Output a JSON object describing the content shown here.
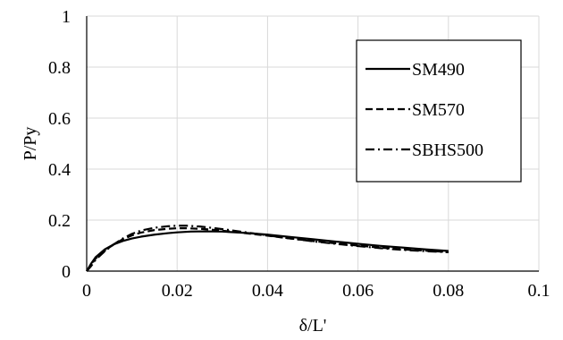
{
  "chart_data": {
    "type": "line",
    "title": "",
    "xlabel": "δ/L'",
    "ylabel": "P/Py",
    "xlim": [
      0,
      0.1
    ],
    "ylim": [
      0,
      1
    ],
    "xticks": [
      0,
      0.02,
      0.04,
      0.06,
      0.08,
      0.1
    ],
    "yticks": [
      0,
      0.2,
      0.4,
      0.6,
      0.8,
      1
    ],
    "xtick_labels": [
      "0",
      "0.02",
      "0.04",
      "0.06",
      "0.08",
      "0.1"
    ],
    "ytick_labels": [
      "0",
      "0.2",
      "0.4",
      "0.6",
      "0.8",
      "1"
    ],
    "grid": true,
    "legend_position": "right",
    "series": [
      {
        "name": "SM490",
        "style": "solid",
        "x": [
          0,
          0.001,
          0.002,
          0.004,
          0.006,
          0.008,
          0.01,
          0.012,
          0.015,
          0.018,
          0.02,
          0.023,
          0.026,
          0.03,
          0.035,
          0.04,
          0.045,
          0.05,
          0.055,
          0.06,
          0.065,
          0.07,
          0.075,
          0.08
        ],
        "y": [
          0,
          0.03,
          0.055,
          0.085,
          0.105,
          0.118,
          0.128,
          0.135,
          0.143,
          0.149,
          0.152,
          0.155,
          0.156,
          0.155,
          0.15,
          0.143,
          0.134,
          0.125,
          0.116,
          0.107,
          0.099,
          0.092,
          0.085,
          0.079
        ]
      },
      {
        "name": "SM570",
        "style": "dashed",
        "x": [
          0,
          0.001,
          0.002,
          0.004,
          0.006,
          0.008,
          0.01,
          0.012,
          0.015,
          0.018,
          0.02,
          0.022,
          0.025,
          0.028,
          0.032,
          0.036,
          0.04,
          0.045,
          0.05,
          0.055,
          0.06,
          0.065,
          0.07,
          0.075,
          0.08
        ],
        "y": [
          0,
          0.025,
          0.05,
          0.08,
          0.105,
          0.125,
          0.14,
          0.151,
          0.161,
          0.166,
          0.168,
          0.168,
          0.166,
          0.162,
          0.155,
          0.147,
          0.139,
          0.128,
          0.118,
          0.109,
          0.1,
          0.092,
          0.085,
          0.08,
          0.075
        ]
      },
      {
        "name": "SBHS500",
        "style": "dashdot",
        "x": [
          0,
          0.001,
          0.002,
          0.004,
          0.006,
          0.008,
          0.01,
          0.012,
          0.015,
          0.018,
          0.02,
          0.022,
          0.025,
          0.028,
          0.032,
          0.036,
          0.04,
          0.045,
          0.05,
          0.055,
          0.06,
          0.065,
          0.07,
          0.075,
          0.08
        ],
        "y": [
          0,
          0.02,
          0.045,
          0.078,
          0.105,
          0.128,
          0.146,
          0.159,
          0.17,
          0.176,
          0.178,
          0.178,
          0.175,
          0.169,
          0.16,
          0.15,
          0.14,
          0.128,
          0.117,
          0.107,
          0.098,
          0.09,
          0.083,
          0.078,
          0.074
        ]
      }
    ]
  }
}
